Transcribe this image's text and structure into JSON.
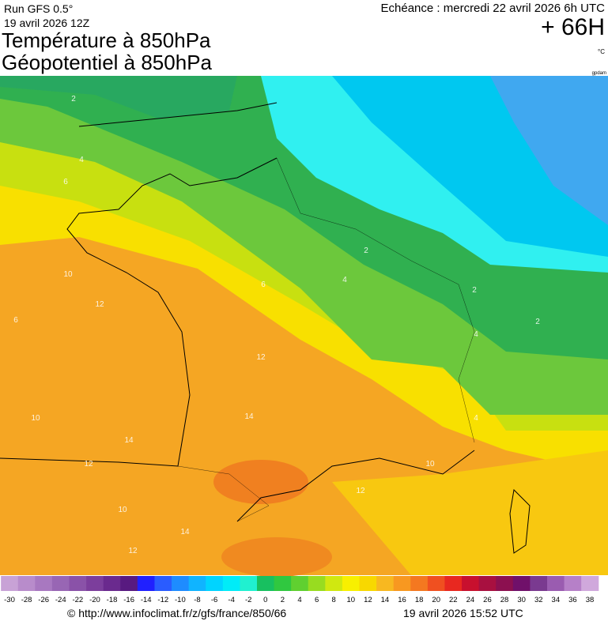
{
  "header": {
    "run": "Run GFS 0.5°",
    "run_date": "19 avril 2026 12Z",
    "title": "Température à 850hPa",
    "subtitle": "Géopotentiel à 850hPa",
    "valid": "Echéance : mercredi 22 avril 2026 6h UTC",
    "lead": "+ 66H",
    "unit": "°C",
    "tag": "gpdam"
  },
  "map": {
    "contour_labels": [
      2,
      4,
      6,
      10,
      12,
      6,
      10,
      14,
      12,
      10,
      14,
      12,
      12,
      10,
      14,
      12,
      4,
      2,
      6,
      4,
      2,
      4,
      2
    ]
  },
  "colorbar": {
    "labels": [
      -30,
      -28,
      -26,
      -24,
      -22,
      -20,
      -18,
      -16,
      -14,
      -12,
      -10,
      -8,
      -6,
      -4,
      -2,
      0,
      2,
      4,
      6,
      8,
      10,
      12,
      14,
      16,
      18,
      20,
      22,
      24,
      26,
      28,
      30,
      32,
      34,
      36,
      38
    ],
    "colors": [
      "#c8a2d6",
      "#b88ccb",
      "#a878c0",
      "#9866b4",
      "#8a52a8",
      "#7c3e9c",
      "#6a2a8e",
      "#581a80",
      "#2020ff",
      "#2a5cff",
      "#1e8cff",
      "#10b4ff",
      "#00d4ff",
      "#00ecf8",
      "#20f0d0",
      "#18c060",
      "#30c840",
      "#60d030",
      "#98dc20",
      "#d0e810",
      "#f8f000",
      "#f8d800",
      "#f8b820",
      "#f89820",
      "#f47820",
      "#f05020",
      "#e82820",
      "#c8102e",
      "#a81040",
      "#8c1050",
      "#70106a",
      "#7a3a90",
      "#9a5cb0",
      "#b680c8",
      "#d0a8dc"
    ]
  },
  "footer": {
    "source": "© http://www.infoclimat.fr/z/gfs/france/850/66",
    "generated": "19 avril 2026 15:52 UTC"
  }
}
